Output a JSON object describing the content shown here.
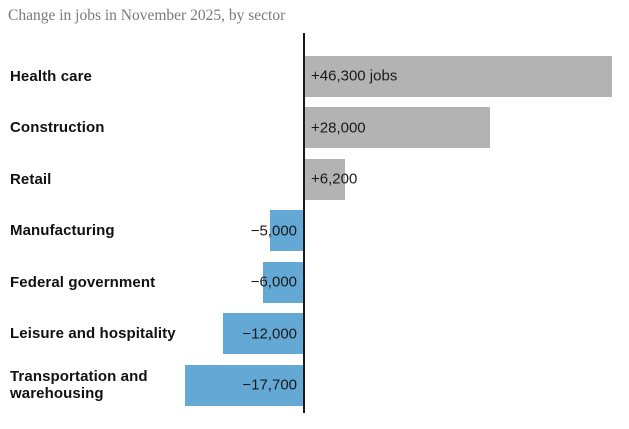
{
  "chart_data": {
    "type": "bar",
    "orientation": "horizontal",
    "title": "Change in jobs in November 2025, by sector",
    "unit": "jobs",
    "xlim": [
      -20000,
      48000
    ],
    "grid": false,
    "legend": "none",
    "axis": "vertical zero baseline between labels and bars",
    "rows": [
      {
        "label": "Health care",
        "value": 46300,
        "value_label": "+46,300 jobs"
      },
      {
        "label": "Construction",
        "value": 28000,
        "value_label": "+28,000"
      },
      {
        "label": "Retail",
        "value": 6200,
        "value_label": "+6,200"
      },
      {
        "label": "Manufacturing",
        "value": -5000,
        "value_label": "−5,000"
      },
      {
        "label": "Federal government",
        "value": -6000,
        "value_label": "−6,000"
      },
      {
        "label": "Leisure and hospitality",
        "value": -12000,
        "value_label": "−12,000"
      },
      {
        "label": "Transportation and warehousing",
        "value": -17700,
        "value_label": "−17,700"
      }
    ],
    "colors": {
      "positive_bar": "#b3b3b3",
      "negative_bar": "#64a8d6",
      "value_text": "#1a1a1a",
      "label_text": "#111111",
      "title_text": "#7a7a7a",
      "axis_line": "#1a1a1a"
    }
  }
}
